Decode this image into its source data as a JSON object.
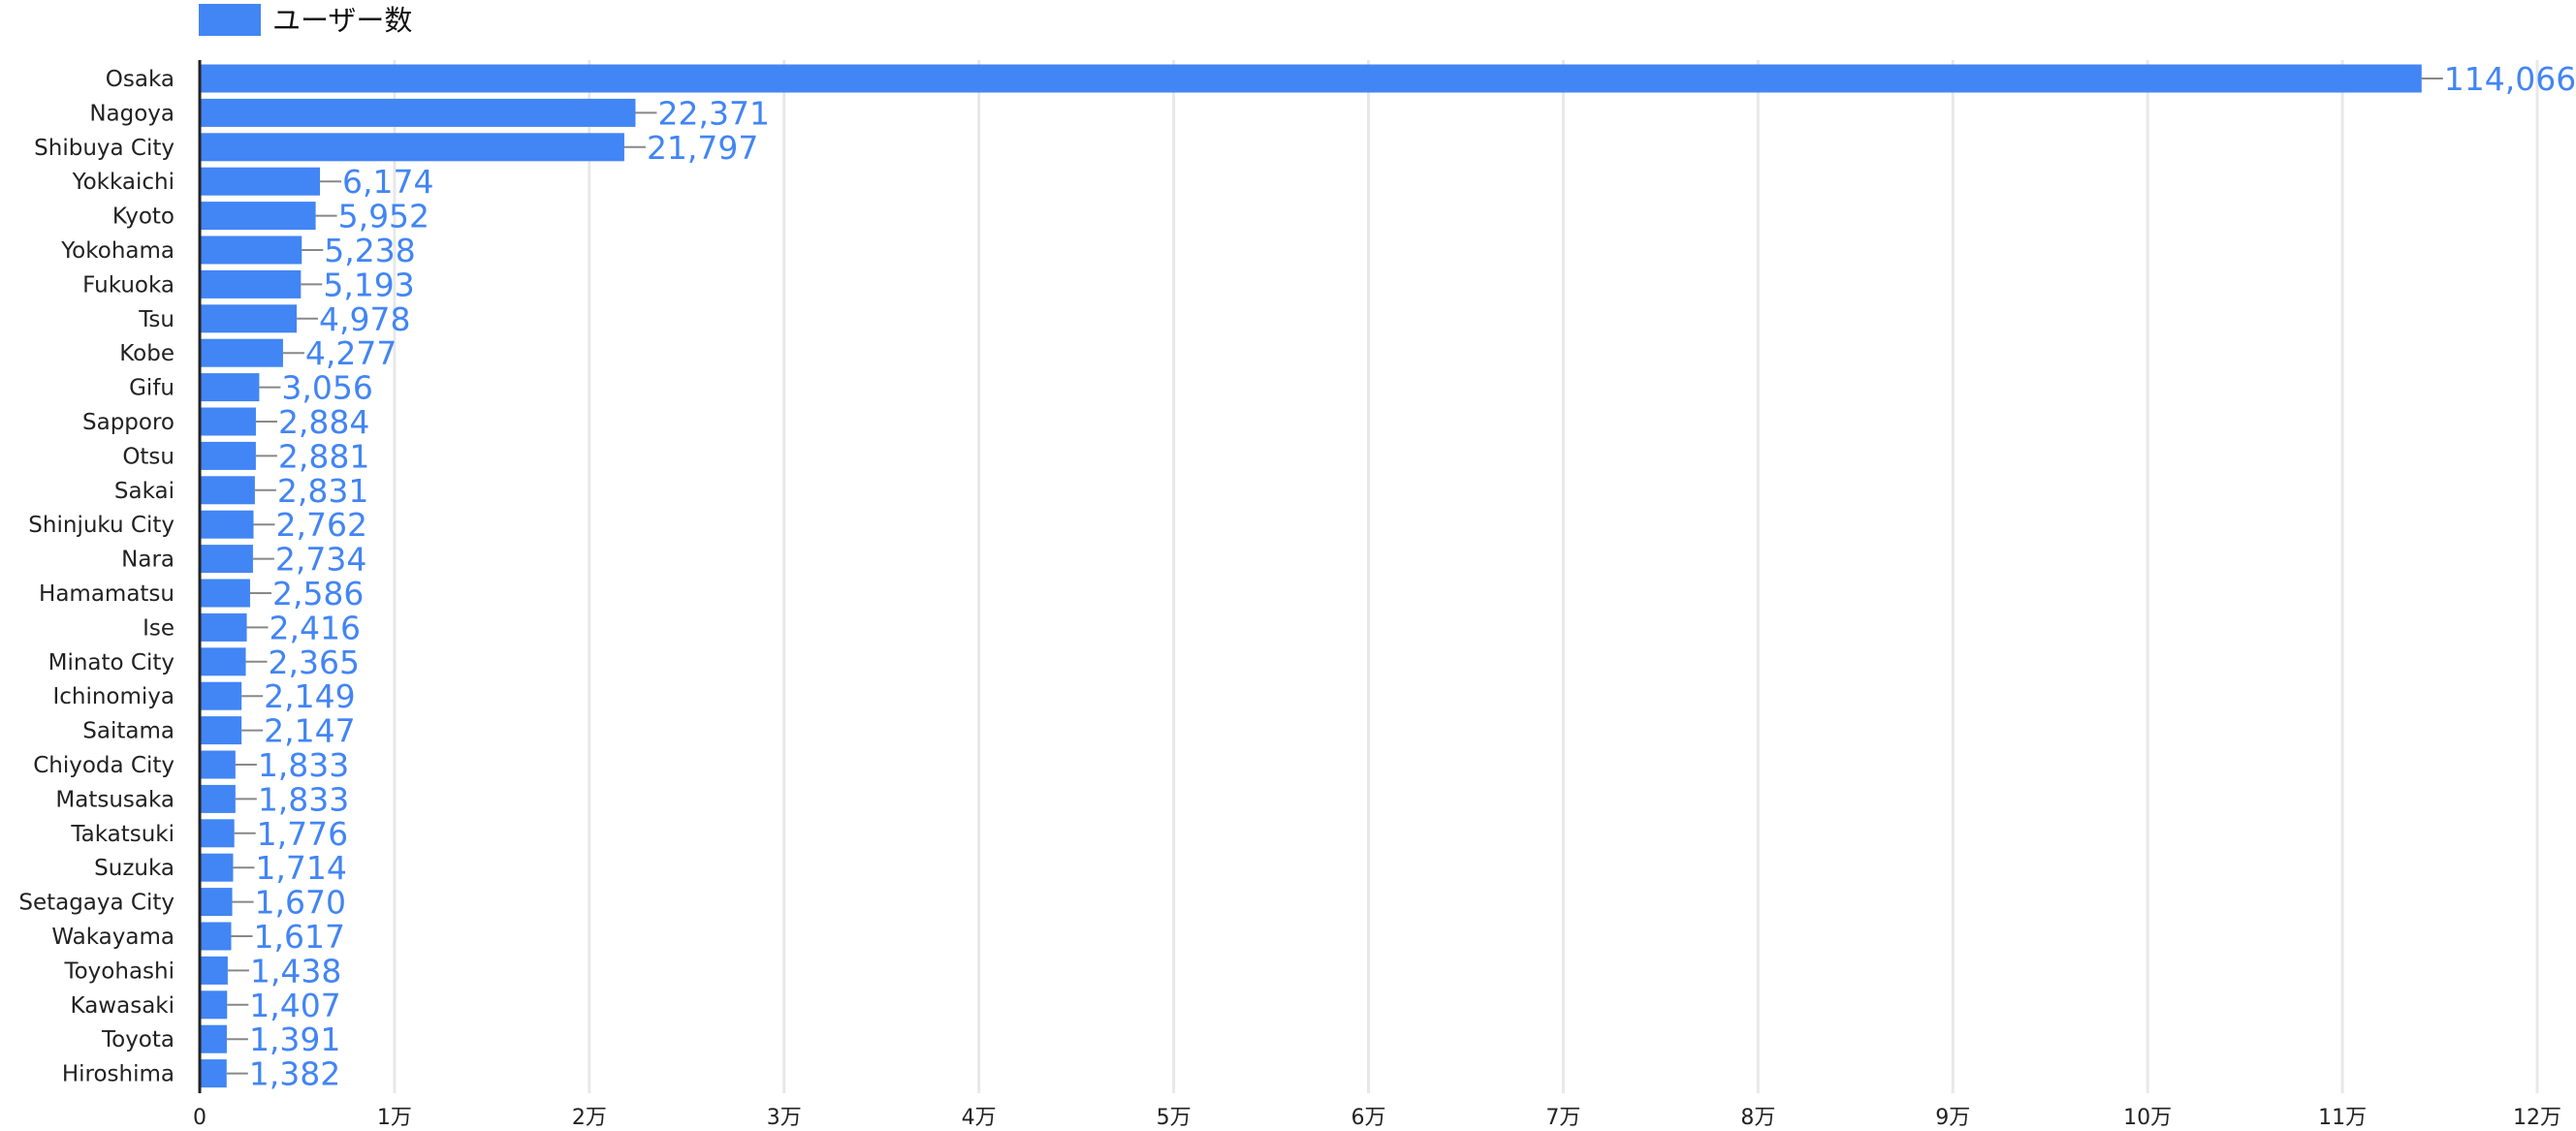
{
  "chart_data": {
    "type": "bar",
    "orientation": "horizontal",
    "legend": {
      "label": "ユーザー数",
      "placement": "top-left"
    },
    "categories": [
      "Osaka",
      "Nagoya",
      "Shibuya City",
      "Yokkaichi",
      "Kyoto",
      "Yokohama",
      "Fukuoka",
      "Tsu",
      "Kobe",
      "Gifu",
      "Sapporo",
      "Otsu",
      "Sakai",
      "Shinjuku City",
      "Nara",
      "Hamamatsu",
      "Ise",
      "Minato City",
      "Ichinomiya",
      "Saitama",
      "Chiyoda City",
      "Matsusaka",
      "Takatsuki",
      "Suzuka",
      "Setagaya City",
      "Wakayama",
      "Toyohashi",
      "Kawasaki",
      "Toyota",
      "Hiroshima"
    ],
    "series": [
      {
        "name": "ユーザー数",
        "values": [
          114066,
          22371,
          21797,
          6174,
          5952,
          5238,
          5193,
          4978,
          4277,
          3056,
          2884,
          2881,
          2831,
          2762,
          2734,
          2586,
          2416,
          2365,
          2149,
          2147,
          1833,
          1833,
          1776,
          1714,
          1670,
          1617,
          1438,
          1407,
          1391,
          1382
        ]
      }
    ],
    "data_labels": [
      "114,066",
      "22,371",
      "21,797",
      "6,174",
      "5,952",
      "5,238",
      "5,193",
      "4,978",
      "4,277",
      "3,056",
      "2,884",
      "2,881",
      "2,831",
      "2,762",
      "2,734",
      "2,586",
      "2,416",
      "2,365",
      "2,149",
      "2,147",
      "1,833",
      "1,833",
      "1,776",
      "1,714",
      "1,670",
      "1,617",
      "1,438",
      "1,407",
      "1,391",
      "1,382"
    ],
    "x_ticks": [
      0,
      10000,
      20000,
      30000,
      40000,
      50000,
      60000,
      70000,
      80000,
      90000,
      100000,
      110000,
      120000
    ],
    "x_tick_labels": [
      "0",
      "1万",
      "2万",
      "3万",
      "4万",
      "5万",
      "6万",
      "7万",
      "8万",
      "9万",
      "10万",
      "11万",
      "12万"
    ],
    "xlim": [
      0,
      120000
    ],
    "grid": true,
    "colors": {
      "bar": "#4285f4",
      "label": "#4285f4",
      "grid": "#e8e8e8",
      "axis": "#222222",
      "leader": "#888888"
    }
  }
}
